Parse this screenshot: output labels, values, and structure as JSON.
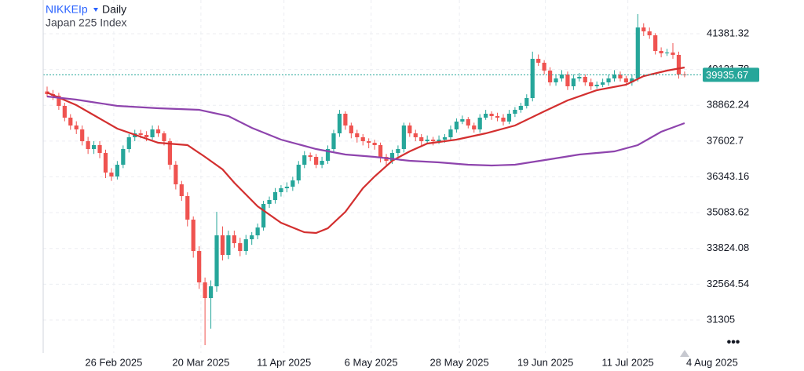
{
  "chart_data": {
    "type": "candlestick",
    "symbol": "NIKKEIp",
    "interval": "Daily",
    "subtitle": "Japan 225 Index",
    "up_color": "#26a69a",
    "down_color": "#ef5350",
    "grid": true,
    "xlim": [
      -0.67,
      112.1
    ],
    "ylim": [
      30145,
      42568
    ],
    "xticks": [
      {
        "value": 11.4,
        "label": "26 Feb 2025"
      },
      {
        "value": 26.3,
        "label": "20 Mar 2025"
      },
      {
        "value": 40.5,
        "label": "11 Apr 2025"
      },
      {
        "value": 55.4,
        "label": "6 May 2025"
      },
      {
        "value": 70.5,
        "label": "28 May 2025"
      },
      {
        "value": 85.2,
        "label": "19 Jun 2025"
      },
      {
        "value": 99.3,
        "label": "11 Jul 2025"
      },
      {
        "value": 113.7,
        "label": "4 Aug 2025"
      }
    ],
    "yticks": [
      41381.32,
      40121.78,
      38862.24,
      37602.7,
      36343.16,
      35083.62,
      33824.08,
      32564.54,
      31305
    ],
    "last_price": 39935.67,
    "last_price_color": "#26a69a",
    "candles": [
      [
        39350,
        39520,
        39150,
        39255
      ],
      [
        39255,
        39400,
        39050,
        39200
      ],
      [
        39200,
        39300,
        38700,
        38841
      ],
      [
        38841,
        38950,
        38300,
        38427
      ],
      [
        38427,
        38550,
        38000,
        38151
      ],
      [
        38151,
        38300,
        37850,
        38013
      ],
      [
        38013,
        38150,
        37450,
        37599
      ],
      [
        37599,
        37750,
        37150,
        37323
      ],
      [
        37323,
        37600,
        37150,
        37461
      ],
      [
        37461,
        37600,
        37000,
        37184
      ],
      [
        37184,
        37300,
        36300,
        36494
      ],
      [
        36494,
        36650,
        36200,
        36356
      ],
      [
        36356,
        36900,
        36250,
        36770
      ],
      [
        36770,
        37450,
        36650,
        37323
      ],
      [
        37323,
        37850,
        37200,
        37737
      ],
      [
        37737,
        38000,
        37600,
        37875
      ],
      [
        37875,
        38000,
        37700,
        37820
      ],
      [
        37820,
        37950,
        37600,
        37737
      ],
      [
        37737,
        38150,
        37650,
        38013
      ],
      [
        38013,
        38150,
        37750,
        37875
      ],
      [
        37875,
        37950,
        37450,
        37599
      ],
      [
        37599,
        37700,
        36600,
        36770
      ],
      [
        36770,
        36900,
        35900,
        36080
      ],
      [
        36080,
        36200,
        35500,
        35666
      ],
      [
        35666,
        35800,
        34600,
        34838
      ],
      [
        34838,
        34950,
        33500,
        33733
      ],
      [
        33733,
        33900,
        32400,
        32629
      ],
      [
        32629,
        32800,
        30420,
        32077
      ],
      [
        32077,
        32700,
        31000,
        32491
      ],
      [
        32491,
        35114,
        32300,
        34285
      ],
      [
        34285,
        34600,
        33400,
        33595
      ],
      [
        33595,
        34450,
        33450,
        34285
      ],
      [
        34285,
        34450,
        33850,
        34009
      ],
      [
        34009,
        34200,
        33550,
        33733
      ],
      [
        33733,
        34300,
        33600,
        34147
      ],
      [
        34147,
        34400,
        33950,
        34285
      ],
      [
        34285,
        34700,
        34150,
        34561
      ],
      [
        34561,
        35500,
        34450,
        35390
      ],
      [
        35390,
        35650,
        35250,
        35528
      ],
      [
        35528,
        35950,
        35400,
        35804
      ],
      [
        35804,
        36050,
        35650,
        35942
      ],
      [
        35942,
        36150,
        35800,
        35997
      ],
      [
        35997,
        36350,
        35850,
        36218
      ],
      [
        36218,
        36900,
        36100,
        36770
      ],
      [
        36770,
        37250,
        36650,
        37101
      ],
      [
        37101,
        37200,
        36900,
        37046
      ],
      [
        37046,
        37150,
        36650,
        36770
      ],
      [
        36770,
        37050,
        36650,
        36908
      ],
      [
        36908,
        37450,
        36800,
        37323
      ],
      [
        37323,
        38000,
        37200,
        37875
      ],
      [
        37875,
        38700,
        37750,
        38565
      ],
      [
        38565,
        38650,
        38000,
        38151
      ],
      [
        38151,
        38250,
        37700,
        37875
      ],
      [
        37875,
        38000,
        37550,
        37737
      ],
      [
        37737,
        37850,
        37450,
        37599
      ],
      [
        37599,
        37700,
        37350,
        37543
      ],
      [
        37543,
        37650,
        37300,
        37461
      ],
      [
        37461,
        37550,
        36850,
        37046
      ],
      [
        37046,
        37150,
        36700,
        36908
      ],
      [
        36908,
        37300,
        36800,
        37184
      ],
      [
        37184,
        37450,
        37050,
        37323
      ],
      [
        37323,
        38250,
        37200,
        38151
      ],
      [
        38151,
        38250,
        37750,
        37875
      ],
      [
        37875,
        38000,
        37600,
        37737
      ],
      [
        37737,
        37850,
        37450,
        37599
      ],
      [
        37599,
        37800,
        37500,
        37654
      ],
      [
        37654,
        37750,
        37450,
        37599
      ],
      [
        37599,
        37800,
        37500,
        37654
      ],
      [
        37654,
        37850,
        37550,
        37737
      ],
      [
        37737,
        38150,
        37650,
        38013
      ],
      [
        38013,
        38400,
        37900,
        38289
      ],
      [
        38289,
        38500,
        38200,
        38372
      ],
      [
        38372,
        38450,
        38050,
        38151
      ],
      [
        38151,
        38250,
        37900,
        38013
      ],
      [
        38013,
        38550,
        37900,
        38427
      ],
      [
        38427,
        38700,
        38350,
        38565
      ],
      [
        38565,
        38650,
        38350,
        38482
      ],
      [
        38482,
        38600,
        38300,
        38427
      ],
      [
        38427,
        38550,
        38150,
        38289
      ],
      [
        38289,
        38700,
        38200,
        38565
      ],
      [
        38565,
        38800,
        38450,
        38703
      ],
      [
        38703,
        38950,
        38600,
        38841
      ],
      [
        38841,
        39250,
        38750,
        39117
      ],
      [
        39117,
        40750,
        39000,
        40498
      ],
      [
        40498,
        40650,
        40250,
        40360
      ],
      [
        40360,
        40450,
        39950,
        40084
      ],
      [
        40084,
        40200,
        39550,
        39669
      ],
      [
        39669,
        39950,
        39550,
        39807
      ],
      [
        39807,
        40100,
        39700,
        39946
      ],
      [
        39946,
        40050,
        39400,
        39531
      ],
      [
        39531,
        39950,
        39400,
        39807
      ],
      [
        39807,
        40000,
        39700,
        39863
      ],
      [
        39863,
        39950,
        39550,
        39669
      ],
      [
        39669,
        39800,
        39400,
        39531
      ],
      [
        39531,
        39700,
        39450,
        39586
      ],
      [
        39586,
        39800,
        39500,
        39669
      ],
      [
        39669,
        39950,
        39550,
        39807
      ],
      [
        39807,
        40100,
        39700,
        39946
      ],
      [
        39946,
        40050,
        39700,
        39807
      ],
      [
        39807,
        39900,
        39550,
        39669
      ],
      [
        39669,
        39950,
        39550,
        39807
      ],
      [
        39807,
        42071,
        39700,
        41602
      ],
      [
        41602,
        41750,
        41300,
        41464
      ],
      [
        41464,
        41600,
        41200,
        41326
      ],
      [
        41326,
        41400,
        40650,
        40774
      ],
      [
        40774,
        40900,
        40550,
        40691
      ],
      [
        40691,
        40850,
        40600,
        40720
      ],
      [
        40720,
        41050,
        40500,
        40636
      ],
      [
        40636,
        40750,
        39800,
        39946
      ],
      [
        39946,
        40050,
        39850,
        39935.67
      ]
    ],
    "lines": [
      {
        "color": "#d32f2f",
        "x": [
          0,
          5,
          12,
          19,
          24,
          27,
          30,
          32,
          36,
          40,
          44,
          46,
          48,
          51,
          54,
          56,
          59,
          62,
          65,
          70,
          75,
          80,
          85,
          89,
          94,
          99,
          102,
          106,
          109
        ],
        "values": [
          39310,
          38869,
          38040,
          37543,
          37461,
          37046,
          36605,
          36135,
          35307,
          34727,
          34395,
          34368,
          34534,
          35114,
          35942,
          36356,
          36908,
          37239,
          37516,
          37654,
          37875,
          38151,
          38648,
          39034,
          39393,
          39586,
          39890,
          40084,
          40194
        ]
      },
      {
        "color": "#8e44ad",
        "x": [
          0,
          5,
          12,
          19,
          26,
          31,
          35,
          40,
          46,
          51,
          56,
          62,
          67,
          72,
          76,
          80,
          86,
          91,
          97,
          101,
          105,
          109
        ],
        "values": [
          39172,
          39062,
          38841,
          38758,
          38703,
          38482,
          38068,
          37654,
          37323,
          37130,
          37046,
          36908,
          36853,
          36770,
          36742,
          36770,
          36963,
          37130,
          37239,
          37461,
          37930,
          38234
        ]
      }
    ]
  }
}
